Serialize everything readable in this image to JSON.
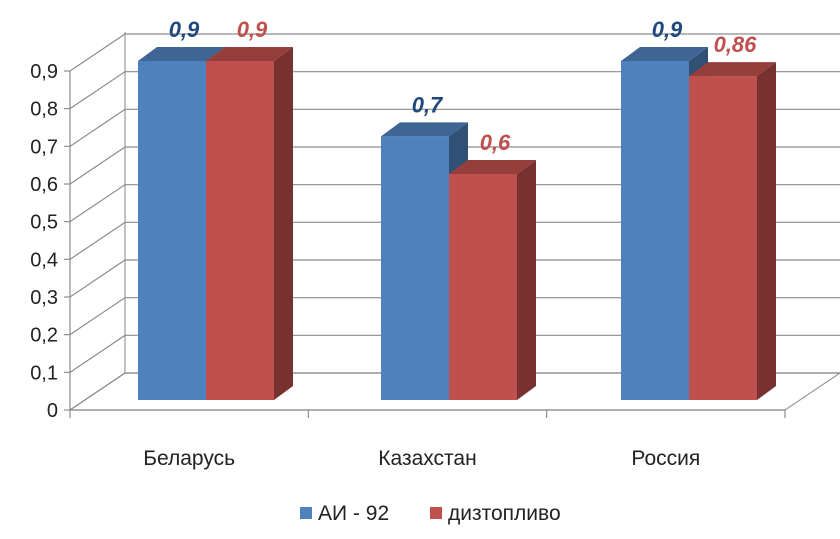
{
  "chart_data": {
    "type": "bar",
    "style": "3d-clustered-column",
    "categories": [
      "Беларусь",
      "Казахстан",
      "Россия"
    ],
    "series": [
      {
        "name": "АИ - 92",
        "values": [
          0.9,
          0.7,
          0.9
        ],
        "labels": [
          "0,9",
          "0,7",
          "0,9"
        ],
        "color": "#4F81BD",
        "label_color": "#1F497D"
      },
      {
        "name": "дизтопливо",
        "values": [
          0.9,
          0.6,
          0.86
        ],
        "labels": [
          "0,9",
          "0,6",
          "0,86"
        ],
        "color": "#C0504D",
        "label_color": "#C0504D"
      }
    ],
    "yticks": [
      "0",
      "0,1",
      "0,2",
      "0,3",
      "0,4",
      "0,5",
      "0,6",
      "0,7",
      "0,8",
      "0,9"
    ],
    "ylim": [
      0,
      0.9
    ],
    "grid": true,
    "legend_position": "bottom",
    "title": "",
    "xlabel": "",
    "ylabel": ""
  }
}
